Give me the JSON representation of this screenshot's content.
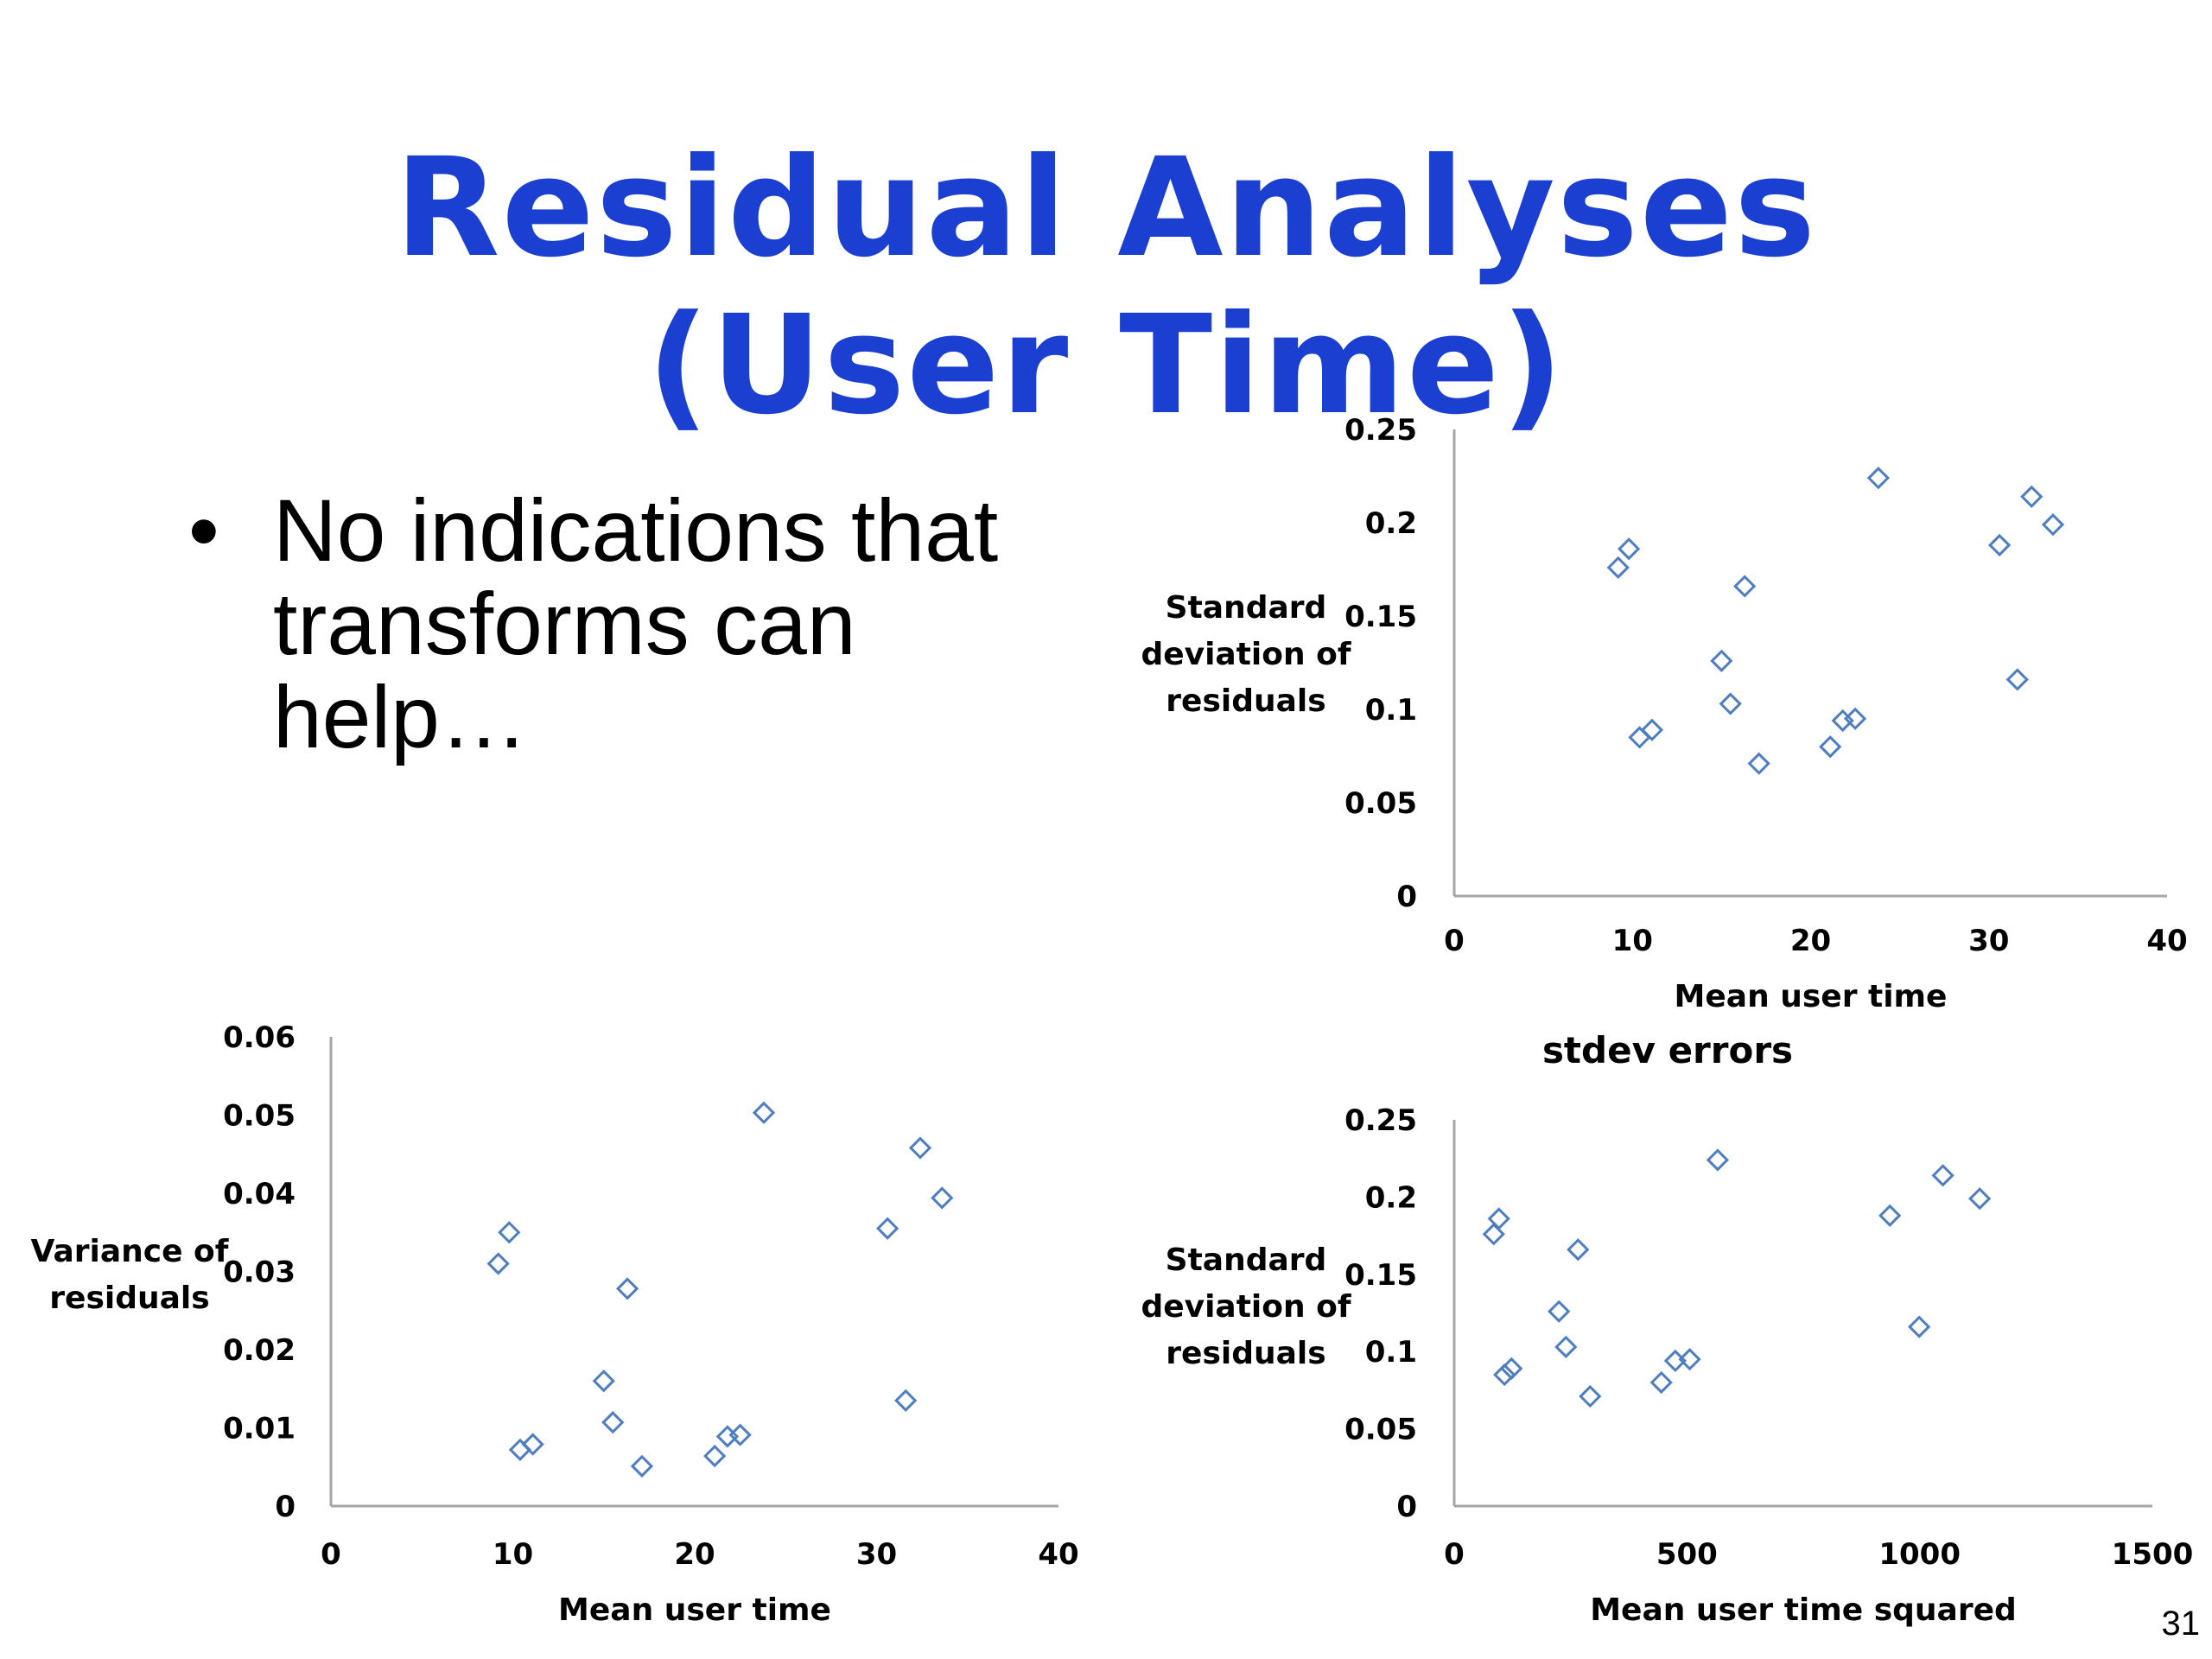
{
  "slide": {
    "title_line1": "Residual Analyses",
    "title_line2": "(User Time)",
    "bullet_symbol": "•",
    "bullet_text": "No indications that transforms can help…",
    "page_number": "31",
    "marker_color": "#4f7ec0",
    "title_color": "#1a3fd1"
  },
  "chart_data": [
    {
      "type": "scatter",
      "title": "",
      "xlabel": "Mean user time",
      "ylabel": [
        "Standard",
        "deviation of",
        "residuals"
      ],
      "xlim": [
        0,
        40
      ],
      "ylim": [
        0,
        0.25
      ],
      "xticks": [
        0,
        10,
        20,
        30,
        40
      ],
      "yticks": [
        0,
        0.05,
        0.1,
        0.15,
        0.2,
        0.25
      ],
      "xtick_labels": [
        "0",
        "10",
        "20",
        "30",
        "40"
      ],
      "ytick_labels": [
        "0",
        "0.05",
        "0.1",
        "0.15",
        "0.2",
        "0.25"
      ],
      "points": [
        [
          9.2,
          0.176
        ],
        [
          9.8,
          0.186
        ],
        [
          10.4,
          0.085
        ],
        [
          11.1,
          0.089
        ],
        [
          15.0,
          0.126
        ],
        [
          15.5,
          0.103
        ],
        [
          16.3,
          0.166
        ],
        [
          17.1,
          0.071
        ],
        [
          21.1,
          0.08
        ],
        [
          21.8,
          0.094
        ],
        [
          22.5,
          0.095
        ],
        [
          23.8,
          0.224
        ],
        [
          30.6,
          0.188
        ],
        [
          31.6,
          0.116
        ],
        [
          32.4,
          0.214
        ],
        [
          33.6,
          0.199
        ]
      ]
    },
    {
      "type": "scatter",
      "title": "",
      "xlabel": "Mean user time",
      "ylabel": [
        "Variance of",
        "residuals"
      ],
      "xlim": [
        0,
        40
      ],
      "ylim": [
        0,
        0.06
      ],
      "xticks": [
        0,
        10,
        20,
        30,
        40
      ],
      "yticks": [
        0,
        0.01,
        0.02,
        0.03,
        0.04,
        0.05,
        0.06
      ],
      "xtick_labels": [
        "0",
        "10",
        "20",
        "30",
        "40"
      ],
      "ytick_labels": [
        "0",
        "0.01",
        "0.02",
        "0.03",
        "0.04",
        "0.05",
        "0.06"
      ],
      "points": [
        [
          9.2,
          0.031
        ],
        [
          9.8,
          0.035
        ],
        [
          10.4,
          0.0072
        ],
        [
          11.1,
          0.0079
        ],
        [
          15.0,
          0.016
        ],
        [
          15.5,
          0.0107
        ],
        [
          16.3,
          0.0278
        ],
        [
          17.1,
          0.0051
        ],
        [
          21.1,
          0.0064
        ],
        [
          21.8,
          0.0089
        ],
        [
          22.5,
          0.0091
        ],
        [
          23.8,
          0.0503
        ],
        [
          30.6,
          0.0355
        ],
        [
          31.6,
          0.0135
        ],
        [
          32.4,
          0.0458
        ],
        [
          33.6,
          0.0394
        ]
      ]
    },
    {
      "type": "scatter",
      "title": "stdev errors",
      "xlabel": "Mean user time squared",
      "ylabel": [
        "Standard",
        "deviation of",
        "residuals"
      ],
      "xlim": [
        0,
        1500
      ],
      "ylim": [
        0,
        0.25
      ],
      "xticks": [
        0,
        500,
        1000,
        1500
      ],
      "yticks": [
        0,
        0.05,
        0.1,
        0.15,
        0.2,
        0.25
      ],
      "xtick_labels": [
        "0",
        "500",
        "1000",
        "1500"
      ],
      "ytick_labels": [
        "0",
        "0.05",
        "0.1",
        "0.15",
        "0.2",
        "0.25"
      ],
      "points": [
        [
          85,
          0.176
        ],
        [
          96,
          0.186
        ],
        [
          108,
          0.085
        ],
        [
          123,
          0.089
        ],
        [
          225,
          0.126
        ],
        [
          240,
          0.103
        ],
        [
          266,
          0.166
        ],
        [
          292,
          0.071
        ],
        [
          445,
          0.08
        ],
        [
          475,
          0.094
        ],
        [
          506,
          0.095
        ],
        [
          566,
          0.224
        ],
        [
          936,
          0.188
        ],
        [
          999,
          0.116
        ],
        [
          1050,
          0.214
        ],
        [
          1129,
          0.199
        ]
      ]
    }
  ]
}
